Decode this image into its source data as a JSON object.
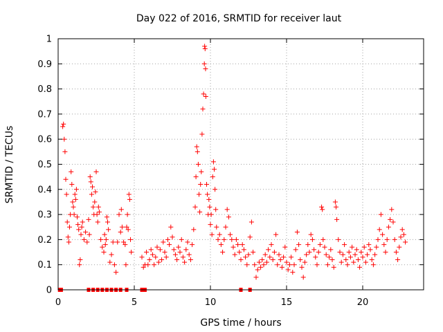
{
  "chart_data": {
    "type": "scatter",
    "title": "Day 022 of 2016, SRMTID for receiver laut",
    "xlabel": "GPS time / hours",
    "ylabel": "SRMTID / TECUs",
    "xlim": [
      0,
      24
    ],
    "ylim": [
      0,
      1
    ],
    "xticks": [
      0,
      5,
      10,
      15,
      20
    ],
    "yticks": [
      0,
      0.1,
      0.2,
      0.3,
      0.4,
      0.5,
      0.6,
      0.7,
      0.8,
      0.9,
      1
    ],
    "xtick_labels": [
      "0",
      "5",
      "10",
      "15",
      "20"
    ],
    "ytick_labels": [
      "0",
      "0.1",
      "0.2",
      "0.3",
      "0.4",
      "0.5",
      "0.6",
      "0.7",
      "0.8",
      "0.9",
      "1"
    ],
    "grid": true,
    "marker": "+",
    "color": "#ff0000",
    "series": [
      {
        "name": "SRMTID",
        "points": [
          [
            0.1,
            0.0
          ],
          [
            0.2,
            0.0
          ],
          [
            0.3,
            0.65
          ],
          [
            0.35,
            0.66
          ],
          [
            0.4,
            0.6
          ],
          [
            0.45,
            0.55
          ],
          [
            0.5,
            0.44
          ],
          [
            0.55,
            0.38
          ],
          [
            0.6,
            0.27
          ],
          [
            0.65,
            0.21
          ],
          [
            0.7,
            0.19
          ],
          [
            0.75,
            0.25
          ],
          [
            0.8,
            0.3
          ],
          [
            0.85,
            0.47
          ],
          [
            0.9,
            0.42
          ],
          [
            0.95,
            0.35
          ],
          [
            1.0,
            0.33
          ],
          [
            1.05,
            0.3
          ],
          [
            1.1,
            0.38
          ],
          [
            1.15,
            0.36
          ],
          [
            1.2,
            0.4
          ],
          [
            1.25,
            0.29
          ],
          [
            1.3,
            0.26
          ],
          [
            1.35,
            0.24
          ],
          [
            1.4,
            0.1
          ],
          [
            1.45,
            0.12
          ],
          [
            1.5,
            0.22
          ],
          [
            1.55,
            0.25
          ],
          [
            1.6,
            0.27
          ],
          [
            1.7,
            0.2
          ],
          [
            1.8,
            0.23
          ],
          [
            1.9,
            0.19
          ],
          [
            2.0,
            0.28
          ],
          [
            2.05,
            0.22
          ],
          [
            2.1,
            0.45
          ],
          [
            2.15,
            0.43
          ],
          [
            2.2,
            0.38
          ],
          [
            2.25,
            0.41
          ],
          [
            2.3,
            0.33
          ],
          [
            2.35,
            0.3
          ],
          [
            2.4,
            0.35
          ],
          [
            2.45,
            0.39
          ],
          [
            2.5,
            0.47
          ],
          [
            2.55,
            0.3
          ],
          [
            2.6,
            0.27
          ],
          [
            2.65,
            0.33
          ],
          [
            2.7,
            0.31
          ],
          [
            2.8,
            0.2
          ],
          [
            2.9,
            0.17
          ],
          [
            3.0,
            0.15
          ],
          [
            3.05,
            0.22
          ],
          [
            3.1,
            0.18
          ],
          [
            3.15,
            0.2
          ],
          [
            3.2,
            0.29
          ],
          [
            3.25,
            0.27
          ],
          [
            3.3,
            0.24
          ],
          [
            3.4,
            0.11
          ],
          [
            3.5,
            0.14
          ],
          [
            3.6,
            0.19
          ],
          [
            3.7,
            0.1
          ],
          [
            3.8,
            0.07
          ],
          [
            3.9,
            0.19
          ],
          [
            4.0,
            0.3
          ],
          [
            4.1,
            0.23
          ],
          [
            4.15,
            0.32
          ],
          [
            4.2,
            0.25
          ],
          [
            4.3,
            0.19
          ],
          [
            4.4,
            0.18
          ],
          [
            4.45,
            0.1
          ],
          [
            4.5,
            0.25
          ],
          [
            4.55,
            0.3
          ],
          [
            4.6,
            0.24
          ],
          [
            4.65,
            0.38
          ],
          [
            4.7,
            0.36
          ],
          [
            4.75,
            0.2
          ],
          [
            4.8,
            0.15
          ],
          [
            2.0,
            0.0
          ],
          [
            2.3,
            0.0
          ],
          [
            2.6,
            0.0
          ],
          [
            2.9,
            0.0
          ],
          [
            3.2,
            0.0
          ],
          [
            3.5,
            0.0
          ],
          [
            3.8,
            0.0
          ],
          [
            4.1,
            0.0
          ],
          [
            4.5,
            0.0
          ],
          [
            5.5,
            0.0
          ],
          [
            5.7,
            0.0
          ],
          [
            5.5,
            0.13
          ],
          [
            5.6,
            0.09
          ],
          [
            5.7,
            0.1
          ],
          [
            5.8,
            0.15
          ],
          [
            5.9,
            0.1
          ],
          [
            6.0,
            0.12
          ],
          [
            6.1,
            0.16
          ],
          [
            6.2,
            0.14
          ],
          [
            6.3,
            0.1
          ],
          [
            6.4,
            0.13
          ],
          [
            6.5,
            0.17
          ],
          [
            6.6,
            0.11
          ],
          [
            6.7,
            0.16
          ],
          [
            6.8,
            0.12
          ],
          [
            6.9,
            0.19
          ],
          [
            7.0,
            0.15
          ],
          [
            7.1,
            0.13
          ],
          [
            7.2,
            0.2
          ],
          [
            7.3,
            0.18
          ],
          [
            7.4,
            0.25
          ],
          [
            7.5,
            0.21
          ],
          [
            7.6,
            0.16
          ],
          [
            7.7,
            0.14
          ],
          [
            7.8,
            0.12
          ],
          [
            7.9,
            0.17
          ],
          [
            8.0,
            0.15
          ],
          [
            8.1,
            0.2
          ],
          [
            8.2,
            0.13
          ],
          [
            8.3,
            0.11
          ],
          [
            8.4,
            0.16
          ],
          [
            8.5,
            0.19
          ],
          [
            8.6,
            0.14
          ],
          [
            8.7,
            0.12
          ],
          [
            8.8,
            0.18
          ],
          [
            8.9,
            0.24
          ],
          [
            9.0,
            0.33
          ],
          [
            9.05,
            0.45
          ],
          [
            9.1,
            0.57
          ],
          [
            9.15,
            0.55
          ],
          [
            9.2,
            0.5
          ],
          [
            9.25,
            0.38
          ],
          [
            9.3,
            0.31
          ],
          [
            9.35,
            0.42
          ],
          [
            9.4,
            0.47
          ],
          [
            9.45,
            0.62
          ],
          [
            9.5,
            0.72
          ],
          [
            9.55,
            0.78
          ],
          [
            9.6,
            0.9
          ],
          [
            9.62,
            0.97
          ],
          [
            9.65,
            0.96
          ],
          [
            9.68,
            0.88
          ],
          [
            9.7,
            0.77
          ],
          [
            9.75,
            0.42
          ],
          [
            9.8,
            0.38
          ],
          [
            9.85,
            0.3
          ],
          [
            9.9,
            0.36
          ],
          [
            9.95,
            0.33
          ],
          [
            10.0,
            0.26
          ],
          [
            10.05,
            0.3
          ],
          [
            10.1,
            0.22
          ],
          [
            10.15,
            0.45
          ],
          [
            10.2,
            0.51
          ],
          [
            10.25,
            0.48
          ],
          [
            10.3,
            0.4
          ],
          [
            10.35,
            0.32
          ],
          [
            10.4,
            0.25
          ],
          [
            10.5,
            0.2
          ],
          [
            10.6,
            0.22
          ],
          [
            10.7,
            0.18
          ],
          [
            10.8,
            0.15
          ],
          [
            10.9,
            0.2
          ],
          [
            11.0,
            0.25
          ],
          [
            11.1,
            0.32
          ],
          [
            11.2,
            0.29
          ],
          [
            11.3,
            0.22
          ],
          [
            11.4,
            0.2
          ],
          [
            11.5,
            0.17
          ],
          [
            11.6,
            0.14
          ],
          [
            11.7,
            0.2
          ],
          [
            11.8,
            0.18
          ],
          [
            11.9,
            0.15
          ],
          [
            12.0,
            0.12
          ],
          [
            12.1,
            0.18
          ],
          [
            12.2,
            0.16
          ],
          [
            12.3,
            0.13
          ],
          [
            12.4,
            0.1
          ],
          [
            12.5,
            0.14
          ],
          [
            12.6,
            0.21
          ],
          [
            12.7,
            0.27
          ],
          [
            12.8,
            0.15
          ],
          [
            12.9,
            0.1
          ],
          [
            13.0,
            0.05
          ],
          [
            13.1,
            0.08
          ],
          [
            13.2,
            0.11
          ],
          [
            13.3,
            0.09
          ],
          [
            13.4,
            0.12
          ],
          [
            13.5,
            0.1
          ],
          [
            13.6,
            0.14
          ],
          [
            13.7,
            0.11
          ],
          [
            13.8,
            0.16
          ],
          [
            13.9,
            0.13
          ],
          [
            14.0,
            0.18
          ],
          [
            14.1,
            0.12
          ],
          [
            14.2,
            0.15
          ],
          [
            14.3,
            0.22
          ],
          [
            14.4,
            0.1
          ],
          [
            14.5,
            0.14
          ],
          [
            14.6,
            0.12
          ],
          [
            14.7,
            0.09
          ],
          [
            14.8,
            0.13
          ],
          [
            14.9,
            0.17
          ],
          [
            15.0,
            0.11
          ],
          [
            15.1,
            0.08
          ],
          [
            15.2,
            0.1
          ],
          [
            15.3,
            0.13
          ],
          [
            15.4,
            0.07
          ],
          [
            15.5,
            0.1
          ],
          [
            15.6,
            0.16
          ],
          [
            15.7,
            0.23
          ],
          [
            15.8,
            0.18
          ],
          [
            15.9,
            0.12
          ],
          [
            16.0,
            0.09
          ],
          [
            16.1,
            0.05
          ],
          [
            16.2,
            0.11
          ],
          [
            16.3,
            0.14
          ],
          [
            16.4,
            0.18
          ],
          [
            16.5,
            0.15
          ],
          [
            16.6,
            0.22
          ],
          [
            16.7,
            0.2
          ],
          [
            16.8,
            0.16
          ],
          [
            16.9,
            0.13
          ],
          [
            17.0,
            0.1
          ],
          [
            17.1,
            0.15
          ],
          [
            17.2,
            0.18
          ],
          [
            17.3,
            0.33
          ],
          [
            17.35,
            0.32
          ],
          [
            17.4,
            0.2
          ],
          [
            17.5,
            0.17
          ],
          [
            17.6,
            0.14
          ],
          [
            17.7,
            0.1
          ],
          [
            17.8,
            0.13
          ],
          [
            17.9,
            0.16
          ],
          [
            18.0,
            0.12
          ],
          [
            18.1,
            0.09
          ],
          [
            18.2,
            0.35
          ],
          [
            18.25,
            0.33
          ],
          [
            18.3,
            0.28
          ],
          [
            18.4,
            0.2
          ],
          [
            18.5,
            0.15
          ],
          [
            18.6,
            0.11
          ],
          [
            18.7,
            0.14
          ],
          [
            18.8,
            0.18
          ],
          [
            18.9,
            0.12
          ],
          [
            19.0,
            0.1
          ],
          [
            19.1,
            0.15
          ],
          [
            19.2,
            0.13
          ],
          [
            19.3,
            0.17
          ],
          [
            19.4,
            0.11
          ],
          [
            19.5,
            0.14
          ],
          [
            19.6,
            0.16
          ],
          [
            19.7,
            0.12
          ],
          [
            19.8,
            0.09
          ],
          [
            19.9,
            0.15
          ],
          [
            20.0,
            0.13
          ],
          [
            20.1,
            0.17
          ],
          [
            20.2,
            0.11
          ],
          [
            20.3,
            0.14
          ],
          [
            20.4,
            0.18
          ],
          [
            20.5,
            0.16
          ],
          [
            20.6,
            0.12
          ],
          [
            20.7,
            0.1
          ],
          [
            20.8,
            0.14
          ],
          [
            20.9,
            0.17
          ],
          [
            21.0,
            0.2
          ],
          [
            21.1,
            0.24
          ],
          [
            21.2,
            0.3
          ],
          [
            21.3,
            0.22
          ],
          [
            21.4,
            0.18
          ],
          [
            21.5,
            0.15
          ],
          [
            21.6,
            0.2
          ],
          [
            21.7,
            0.25
          ],
          [
            21.8,
            0.28
          ],
          [
            21.9,
            0.32
          ],
          [
            22.0,
            0.27
          ],
          [
            22.1,
            0.2
          ],
          [
            22.2,
            0.15
          ],
          [
            22.3,
            0.12
          ],
          [
            22.4,
            0.17
          ],
          [
            22.5,
            0.21
          ],
          [
            22.6,
            0.24
          ],
          [
            22.7,
            0.22
          ],
          [
            22.8,
            0.19
          ],
          [
            12.0,
            0.0
          ],
          [
            12.6,
            0.0
          ]
        ]
      }
    ]
  }
}
